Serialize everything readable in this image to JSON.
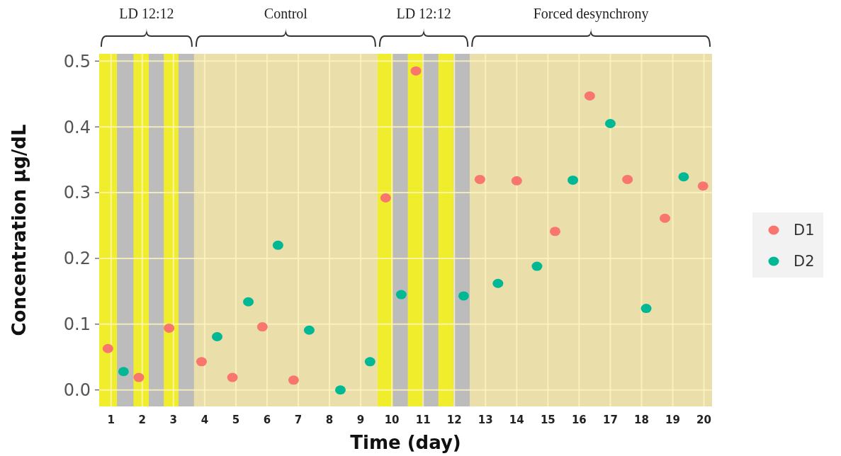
{
  "chart_data": {
    "type": "scatter",
    "xlabel": "Time (day)",
    "ylabel": "Concentration μg/dL",
    "xlim": [
      0.62,
      20.26
    ],
    "xticks": [
      1,
      2,
      3,
      4,
      5,
      6,
      7,
      8,
      9,
      10,
      11,
      12,
      13,
      14,
      15,
      16,
      17,
      18,
      19,
      20
    ],
    "ylim": [
      -0.025,
      0.511
    ],
    "yticks": [
      {
        "value": 0,
        "label": "0.0"
      },
      {
        "value": 0.1,
        "label": "0.1"
      },
      {
        "value": 0.2,
        "label": "0.2"
      },
      {
        "value": 0.3,
        "label": "0.3"
      },
      {
        "value": 0.4,
        "label": "0.4"
      },
      {
        "value": 0.5,
        "label": "0.5"
      }
    ],
    "grid": true,
    "legend": "right",
    "marker": "circle",
    "bands": [
      {
        "axis": "x",
        "from": 0.62,
        "to": 3.66,
        "label": "LD 12:12",
        "color": "#f0ee2c"
      },
      {
        "axis": "x",
        "from": 1.19,
        "to": 1.72,
        "color": "#bcbcbc"
      },
      {
        "axis": "x",
        "from": 2.21,
        "to": 2.69,
        "color": "#bcbcbc"
      },
      {
        "axis": "x",
        "from": 3.16,
        "to": 3.66,
        "color": "#bcbcbc"
      },
      {
        "axis": "x",
        "from": 3.66,
        "to": 9.54,
        "label": "Control",
        "color": "#eadeab"
      },
      {
        "axis": "x",
        "from": 9.54,
        "to": 12.5,
        "label": "LD 12:12",
        "color": "#f0ee2c"
      },
      {
        "axis": "x",
        "from": 10.03,
        "to": 10.51,
        "color": "#bcbcbc"
      },
      {
        "axis": "x",
        "from": 10.98,
        "to": 11.49,
        "color": "#bcbcbc"
      },
      {
        "axis": "x",
        "from": 11.97,
        "to": 12.5,
        "color": "#bcbcbc"
      },
      {
        "axis": "x",
        "from": 12.5,
        "to": 20.26,
        "label": "Forced desynchrony",
        "color": "#eadeab"
      }
    ],
    "series": [
      {
        "name": "D1",
        "color": "#f8766d",
        "x": [
          0.9,
          1.89,
          2.86,
          3.9,
          4.89,
          5.85,
          6.85,
          9.8,
          10.77,
          12.82,
          14.0,
          15.23,
          16.34,
          17.55,
          18.75,
          19.97
        ],
        "values": [
          0.063,
          0.019,
          0.094,
          0.043,
          0.019,
          0.096,
          0.015,
          0.292,
          0.485,
          0.32,
          0.318,
          0.241,
          0.447,
          0.32,
          0.261,
          0.31
        ]
      },
      {
        "name": "D2",
        "color": "#00b894",
        "x": [
          1.4,
          4.4,
          5.4,
          6.35,
          7.35,
          8.35,
          9.3,
          10.3,
          12.3,
          13.4,
          14.65,
          15.8,
          17.0,
          18.15,
          19.35
        ],
        "values": [
          0.028,
          0.081,
          0.134,
          0.22,
          0.091,
          0.0,
          0.043,
          0.145,
          0.143,
          0.162,
          0.188,
          0.319,
          0.405,
          0.124,
          0.324
        ]
      }
    ]
  }
}
